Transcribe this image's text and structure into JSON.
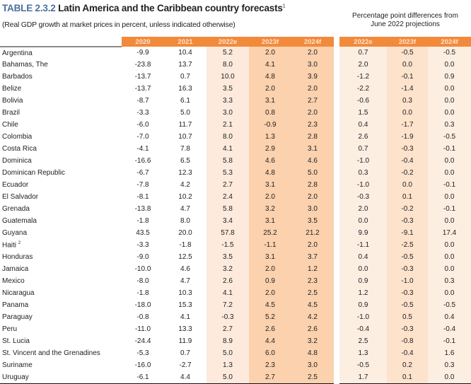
{
  "title": {
    "number": "TABLE 2.3.2",
    "text": "Latin America and the Caribbean country forecasts",
    "footnote": "1"
  },
  "subtitle": "(Real GDP growth at market prices in percent, unless indicated otherwise)",
  "diff_header": {
    "line1": "Percentage point differences from",
    "line2": "June 2022 projections"
  },
  "columns": [
    "2020",
    "2021",
    "2022e",
    "2023f",
    "2024f"
  ],
  "diff_columns": [
    "2022e",
    "2023f",
    "2024f"
  ],
  "rows": [
    {
      "name": "Argentina",
      "v": [
        "-9.9",
        "10.4",
        "5.2",
        "2.0",
        "2.0"
      ],
      "d": [
        "0.7",
        "-0.5",
        "-0.5"
      ]
    },
    {
      "name": "Bahamas, The",
      "v": [
        "-23.8",
        "13.7",
        "8.0",
        "4.1",
        "3.0"
      ],
      "d": [
        "2.0",
        "0.0",
        "0.0"
      ]
    },
    {
      "name": "Barbados",
      "v": [
        "-13.7",
        "0.7",
        "10.0",
        "4.8",
        "3.9"
      ],
      "d": [
        "-1.2",
        "-0.1",
        "0.9"
      ]
    },
    {
      "name": "Belize",
      "v": [
        "-13.7",
        "16.3",
        "3.5",
        "2.0",
        "2.0"
      ],
      "d": [
        "-2.2",
        "-1.4",
        "0.0"
      ]
    },
    {
      "name": "Bolivia",
      "v": [
        "-8.7",
        "6.1",
        "3.3",
        "3.1",
        "2.7"
      ],
      "d": [
        "-0.6",
        "0.3",
        "0.0"
      ]
    },
    {
      "name": "Brazil",
      "v": [
        "-3.3",
        "5.0",
        "3.0",
        "0.8",
        "2.0"
      ],
      "d": [
        "1.5",
        "0.0",
        "0.0"
      ]
    },
    {
      "name": "Chile",
      "v": [
        "-6.0",
        "11.7",
        "2.1",
        "-0.9",
        "2.3"
      ],
      "d": [
        "0.4",
        "-1.7",
        "0.3"
      ]
    },
    {
      "name": "Colombia",
      "v": [
        "-7.0",
        "10.7",
        "8.0",
        "1.3",
        "2.8"
      ],
      "d": [
        "2.6",
        "-1.9",
        "-0.5"
      ]
    },
    {
      "name": "Costa Rica",
      "v": [
        "-4.1",
        "7.8",
        "4.1",
        "2.9",
        "3.1"
      ],
      "d": [
        "0.7",
        "-0.3",
        "-0.1"
      ]
    },
    {
      "name": "Dominica",
      "v": [
        "-16.6",
        "6.5",
        "5.8",
        "4.6",
        "4.6"
      ],
      "d": [
        "-1.0",
        "-0.4",
        "0.0"
      ]
    },
    {
      "name": "Dominican Republic",
      "v": [
        "-6.7",
        "12.3",
        "5.3",
        "4.8",
        "5.0"
      ],
      "d": [
        "0.3",
        "-0.2",
        "0.0"
      ]
    },
    {
      "name": "Ecuador",
      "v": [
        "-7.8",
        "4.2",
        "2.7",
        "3.1",
        "2.8"
      ],
      "d": [
        "-1.0",
        "0.0",
        "-0.1"
      ]
    },
    {
      "name": "El Salvador",
      "v": [
        "-8.1",
        "10.2",
        "2.4",
        "2.0",
        "2.0"
      ],
      "d": [
        "-0.3",
        "0.1",
        "0.0"
      ]
    },
    {
      "name": "Grenada",
      "v": [
        "-13.8",
        "4.7",
        "5.8",
        "3.2",
        "3.0"
      ],
      "d": [
        "2.0",
        "-0.2",
        "-0.1"
      ]
    },
    {
      "name": "Guatemala",
      "v": [
        "-1.8",
        "8.0",
        "3.4",
        "3.1",
        "3.5"
      ],
      "d": [
        "0.0",
        "-0.3",
        "0.0"
      ]
    },
    {
      "name": "Guyana",
      "v": [
        "43.5",
        "20.0",
        "57.8",
        "25.2",
        "21.2"
      ],
      "d": [
        "9.9",
        "-9.1",
        "17.4"
      ]
    },
    {
      "name": "Haiti",
      "sup": "2",
      "v": [
        "-3.3",
        "-1.8",
        "-1.5",
        "-1.1",
        "2.0"
      ],
      "d": [
        "-1.1",
        "-2.5",
        "0.0"
      ]
    },
    {
      "name": "Honduras",
      "v": [
        "-9.0",
        "12.5",
        "3.5",
        "3.1",
        "3.7"
      ],
      "d": [
        "0.4",
        "-0.5",
        "0.0"
      ]
    },
    {
      "name": "Jamaica",
      "v": [
        "-10.0",
        "4.6",
        "3.2",
        "2.0",
        "1.2"
      ],
      "d": [
        "0.0",
        "-0.3",
        "0.0"
      ]
    },
    {
      "name": "Mexico",
      "v": [
        "-8.0",
        "4.7",
        "2.6",
        "0.9",
        "2.3"
      ],
      "d": [
        "0.9",
        "-1.0",
        "0.3"
      ]
    },
    {
      "name": "Nicaragua",
      "v": [
        "-1.8",
        "10.3",
        "4.1",
        "2.0",
        "2.5"
      ],
      "d": [
        "1.2",
        "-0.3",
        "0.0"
      ]
    },
    {
      "name": "Panama",
      "v": [
        "-18.0",
        "15.3",
        "7.2",
        "4.5",
        "4.5"
      ],
      "d": [
        "0.9",
        "-0.5",
        "-0.5"
      ]
    },
    {
      "name": "Paraguay",
      "v": [
        "-0.8",
        "4.1",
        "-0.3",
        "5.2",
        "4.2"
      ],
      "d": [
        "-1.0",
        "0.5",
        "0.4"
      ]
    },
    {
      "name": "Peru",
      "v": [
        "-11.0",
        "13.3",
        "2.7",
        "2.6",
        "2.6"
      ],
      "d": [
        "-0.4",
        "-0.3",
        "-0.4"
      ]
    },
    {
      "name": "St. Lucia",
      "v": [
        "-24.4",
        "11.9",
        "8.9",
        "4.4",
        "3.2"
      ],
      "d": [
        "2.5",
        "-0.8",
        "-0.1"
      ]
    },
    {
      "name": "St. Vincent and the Grenadines",
      "v": [
        "-5.3",
        "0.7",
        "5.0",
        "6.0",
        "4.8"
      ],
      "d": [
        "1.3",
        "-0.4",
        "1.6"
      ]
    },
    {
      "name": "Suriname",
      "v": [
        "-16.0",
        "-2.7",
        "1.3",
        "2.3",
        "3.0"
      ],
      "d": [
        "-0.5",
        "0.2",
        "0.3"
      ]
    },
    {
      "name": "Uruguay",
      "v": [
        "-6.1",
        "4.4",
        "5.0",
        "2.7",
        "2.5"
      ],
      "d": [
        "1.7",
        "0.1",
        "0.0"
      ]
    }
  ]
}
